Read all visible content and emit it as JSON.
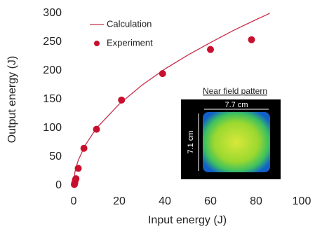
{
  "chart_data": {
    "type": "scatter",
    "xlabel": "Input energy (J)",
    "ylabel": "Output energy (J)",
    "xlim": [
      0,
      100
    ],
    "xticks": [
      0,
      20,
      40,
      60,
      80,
      100
    ],
    "ylim": [
      0,
      300
    ],
    "yticks": [
      0,
      50,
      100,
      150,
      200,
      250,
      300
    ],
    "legend": "upper left",
    "series": [
      {
        "name": "Calculation",
        "color": "#c8304c",
        "style": "line",
        "x": [
          0,
          0.5,
          1,
          2,
          5,
          10,
          20,
          30,
          40,
          50,
          60,
          70,
          80,
          86
        ],
        "values": [
          0,
          22,
          31,
          44,
          70,
          100,
          142,
          175,
          203,
          227,
          249,
          270,
          289,
          300
        ]
      },
      {
        "name": "Experiment",
        "color": "#c8102e",
        "style": "markers",
        "x": [
          0.3,
          0.5,
          0.8,
          1,
          2,
          4.5,
          10,
          21,
          39,
          60,
          78
        ],
        "values": [
          2,
          5,
          10,
          12,
          30,
          65,
          98,
          149,
          195,
          237,
          254
        ]
      }
    ],
    "inset": {
      "title": "Near field pattern",
      "width_label": "7.7 cm",
      "height_label": "7.1 cm"
    }
  }
}
